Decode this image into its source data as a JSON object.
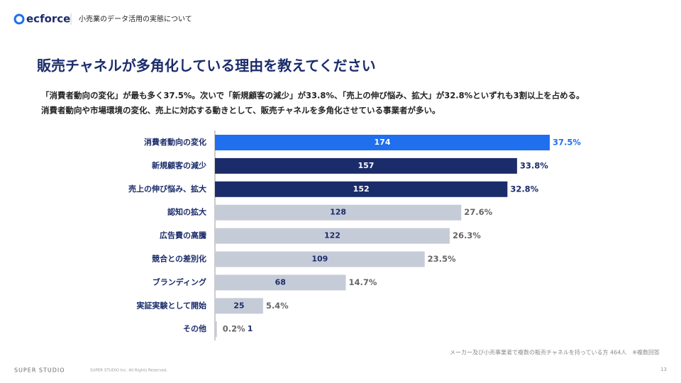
{
  "header": {
    "brand": "ecforce",
    "section": "小売業のデータ活用の実態について"
  },
  "chart_data": {
    "type": "hbar",
    "title": "販売チャネルが多角化している理由を教えてください",
    "subtitle": [
      "「消費者動向の変化」が最も多く37.5%。次いで「新規顧客の減少」が33.8%、「売上の伸び悩み、拡大」が32.8%といずれも3割以上を占める。",
      "消費者動向や市場環境の変化、売上に対応する動きとして、販売チャネルを多角化させている事業者が多い。"
    ],
    "categories": [
      "消費者動向の変化",
      "新規顧客の減少",
      "売上の伸び悩み、拡大",
      "認知の拡大",
      "広告費の高騰",
      "競合との差別化",
      "ブランディング",
      "実証実験として開始",
      "その他"
    ],
    "values": [
      174,
      157,
      152,
      128,
      122,
      109,
      68,
      25,
      1
    ],
    "share_values": [
      37.5,
      33.8,
      32.8,
      27.6,
      26.3,
      23.5,
      14.7,
      5.4,
      0.2
    ],
    "share_labels": [
      "37.5%",
      "33.8%",
      "32.8%",
      "27.6%",
      "26.3%",
      "23.5%",
      "14.7%",
      "5.4%",
      "0.2%"
    ],
    "colors": [
      "#1f6fef",
      "#1b2c6b",
      "#1b2c6b",
      "#c6cbd8",
      "#c6cbd8",
      "#c6cbd8",
      "#c6cbd8",
      "#c6cbd8",
      "#c6cbd8"
    ],
    "note": "メーカー及び小売事業者で複数の販売チャネルを持っている方 464人　※複数回答"
  },
  "footer": {
    "company": "SUPER STUDIO",
    "copyright": "SUPER STUDIO Inc. All Rights Reserved.",
    "page": "13"
  }
}
